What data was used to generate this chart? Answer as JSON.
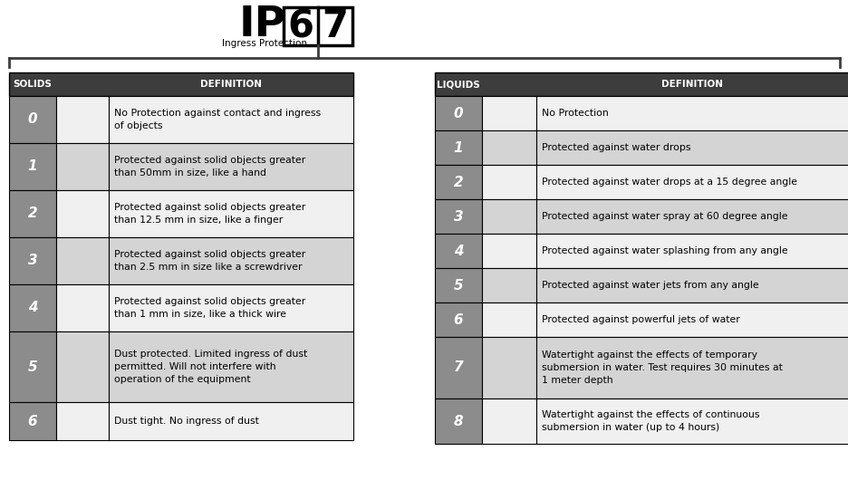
{
  "bg_color": "#ffffff",
  "header_color": "#3d3d3d",
  "header_text_color": "#ffffff",
  "row_odd_color": "#d4d4d4",
  "row_even_color": "#f0f0f0",
  "number_col_color": "#8c8c8c",
  "number_text_color": "#ffffff",
  "solids_header": "SOLIDS",
  "liquids_header": "LIQUIDS",
  "definition_header": "DEFINITION",
  "solids": [
    {
      "num": "0",
      "def": "No Protection against contact and ingress\nof objects"
    },
    {
      "num": "1",
      "def": "Protected against solid objects greater\nthan 50mm in size, like a hand"
    },
    {
      "num": "2",
      "def": "Protected against solid objects greater\nthan 12.5 mm in size, like a finger"
    },
    {
      "num": "3",
      "def": "Protected against solid objects greater\nthan 2.5 mm in size like a screwdriver"
    },
    {
      "num": "4",
      "def": "Protected against solid objects greater\nthan 1 mm in size, like a thick wire"
    },
    {
      "num": "5",
      "def": "Dust protected. Limited ingress of dust\npermitted. Will not interfere with\noperation of the equipment"
    },
    {
      "num": "6",
      "def": "Dust tight. No ingress of dust"
    }
  ],
  "liquids": [
    {
      "num": "0",
      "def": "No Protection"
    },
    {
      "num": "1",
      "def": "Protected against water drops"
    },
    {
      "num": "2",
      "def": "Protected against water drops at a 15 degree angle"
    },
    {
      "num": "3",
      "def": "Protected against water spray at 60 degree angle"
    },
    {
      "num": "4",
      "def": "Protected against water splashing from any angle"
    },
    {
      "num": "5",
      "def": "Protected against water jets from any angle"
    },
    {
      "num": "6",
      "def": "Protected against powerful jets of water"
    },
    {
      "num": "7",
      "def": "Watertight against the effects of temporary\nsubmersion in water. Test requires 30 minutes at\n1 meter depth"
    },
    {
      "num": "8",
      "def": "Watertight against the effects of continuous\nsubmersion in water (up to 4 hours)"
    }
  ]
}
